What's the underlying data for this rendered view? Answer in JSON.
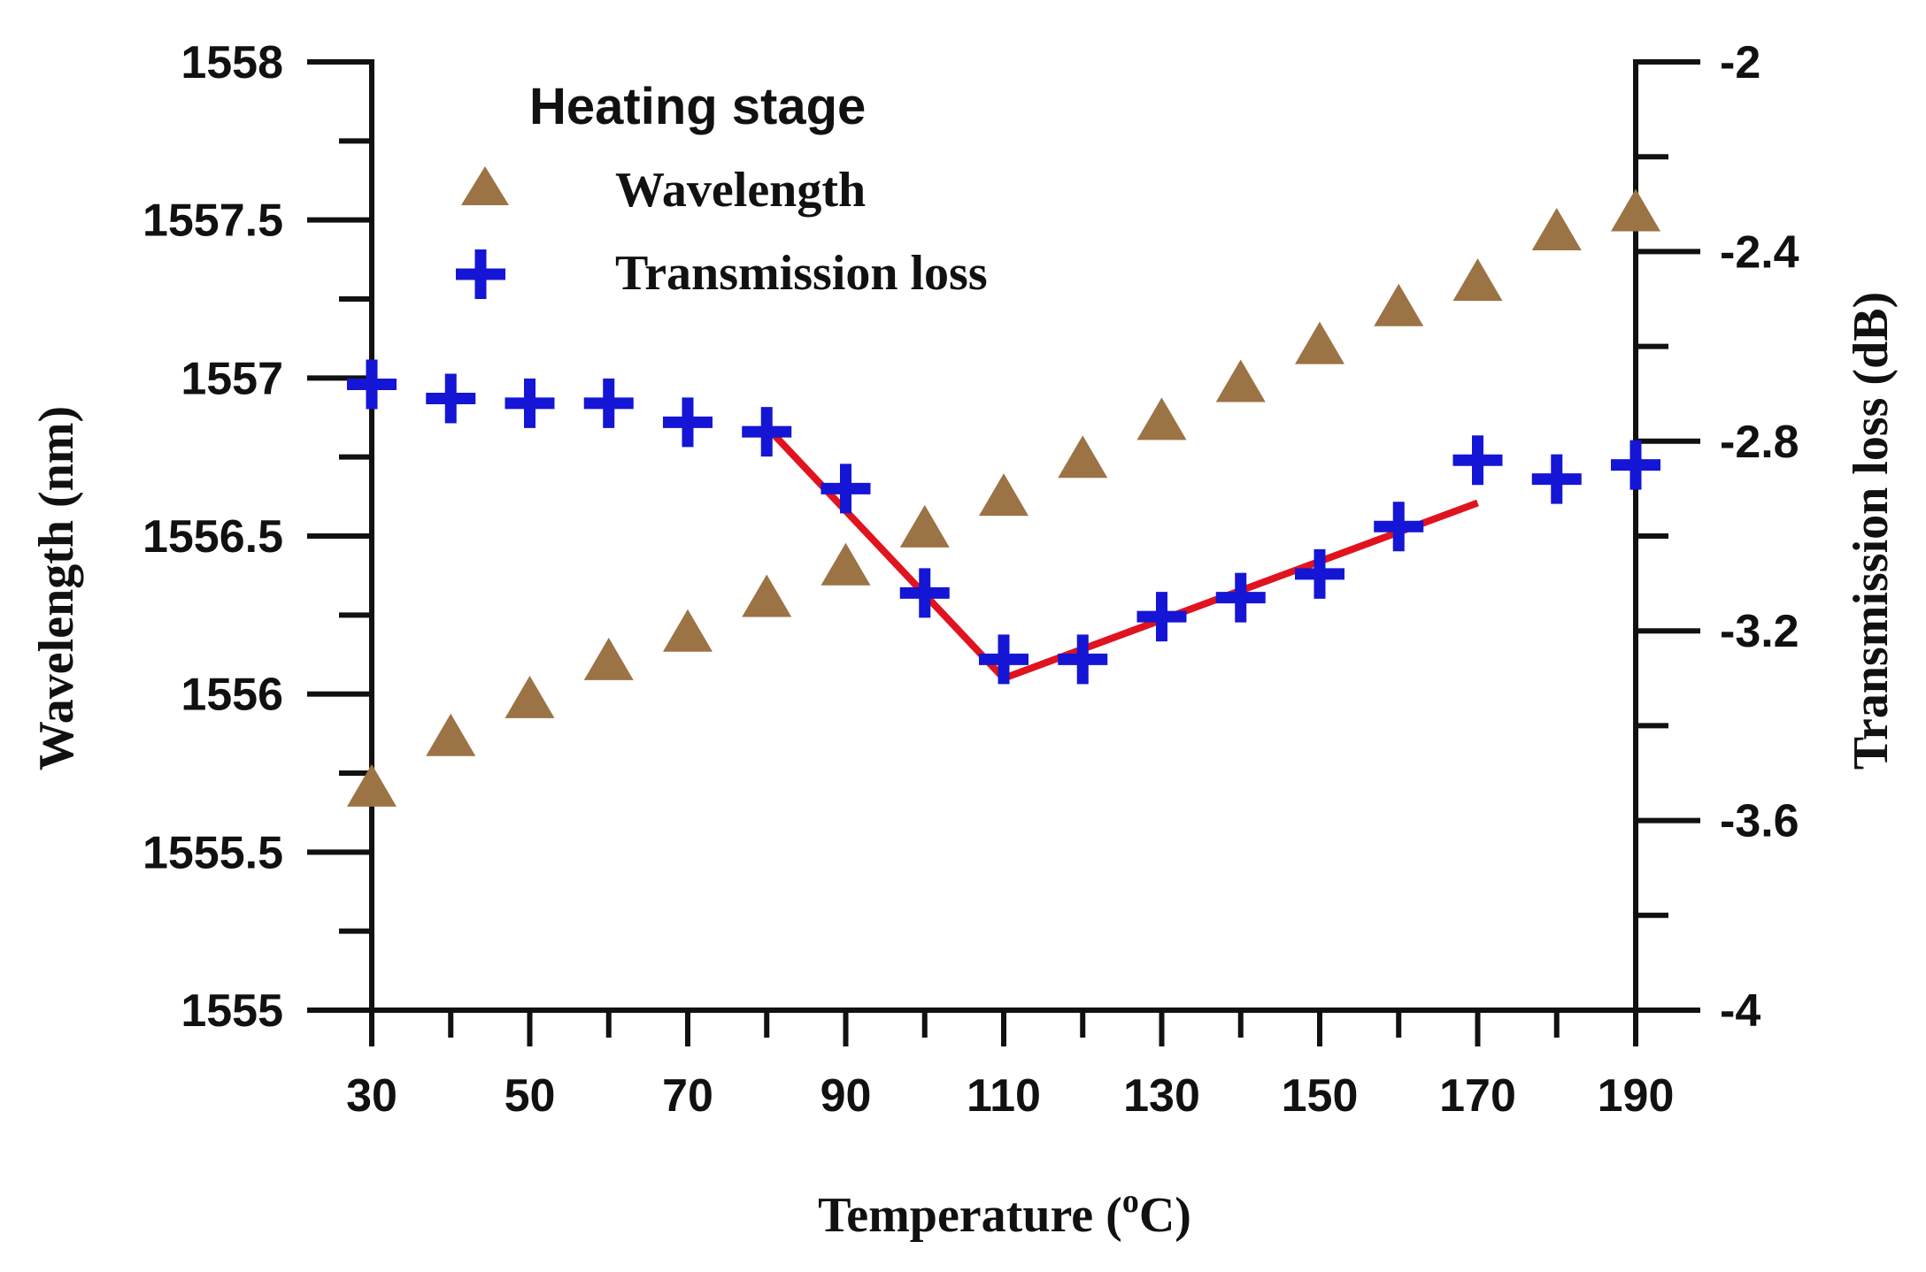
{
  "chart_data": {
    "type": "scatter",
    "xlabel_prefix": "Temperature (",
    "xlabel_sup": "o",
    "xlabel_suffix": "C)",
    "ylabel_left": "Wavelength (nm)",
    "ylabel_right": "Transmission loss (dB)",
    "xlim": [
      30,
      190
    ],
    "ylim_left": [
      1555,
      1558
    ],
    "ylim_right": [
      -4,
      -2
    ],
    "x_ticks": [
      30,
      50,
      70,
      90,
      110,
      130,
      150,
      170,
      190
    ],
    "x_tick_labels": [
      "30",
      "50",
      "70",
      "90",
      "110",
      "130",
      "150",
      "170",
      "190"
    ],
    "y_left_ticks": [
      1555,
      1555.5,
      1556,
      1556.5,
      1557,
      1557.5,
      1558
    ],
    "y_left_tick_labels": [
      "1555",
      "1555.5",
      "1556",
      "1556.5",
      "1557",
      "1557.5",
      "1558"
    ],
    "y_right_ticks": [
      -4,
      -3.6,
      -3.2,
      -2.8,
      -2.4,
      -2
    ],
    "y_right_tick_labels": [
      "-4",
      "-3.6",
      "-3.2",
      "-2.8",
      "-2.4",
      "-2"
    ],
    "legend_title": "Heating stage",
    "legend_position": "top-left",
    "grid": false,
    "series": [
      {
        "name": "Wavelength",
        "axis": "left",
        "marker": "triangle",
        "color": "#9c7345",
        "x": [
          30,
          40,
          50,
          60,
          70,
          80,
          90,
          100,
          110,
          120,
          130,
          140,
          150,
          160,
          170,
          180,
          190
        ],
        "y": [
          1555.7,
          1555.86,
          1555.98,
          1556.1,
          1556.19,
          1556.3,
          1556.4,
          1556.52,
          1556.62,
          1556.74,
          1556.86,
          1556.98,
          1557.1,
          1557.22,
          1557.3,
          1557.46,
          1557.52
        ]
      },
      {
        "name": "Transmission loss",
        "axis": "right",
        "marker": "plus",
        "color": "#1515d6",
        "x": [
          30,
          40,
          50,
          60,
          70,
          80,
          90,
          100,
          110,
          120,
          130,
          140,
          150,
          160,
          170,
          180,
          190
        ],
        "y": [
          -2.68,
          -2.71,
          -2.72,
          -2.72,
          -2.76,
          -2.78,
          -2.9,
          -3.12,
          -3.26,
          -3.26,
          -3.17,
          -3.13,
          -3.08,
          -2.98,
          -2.84,
          -2.88,
          -2.85
        ]
      }
    ],
    "fit_lines": [
      {
        "color": "#e0141e",
        "axis": "right",
        "points": [
          [
            80,
            -2.77
          ],
          [
            110,
            -3.3
          ],
          [
            170,
            -2.93
          ]
        ]
      }
    ]
  }
}
